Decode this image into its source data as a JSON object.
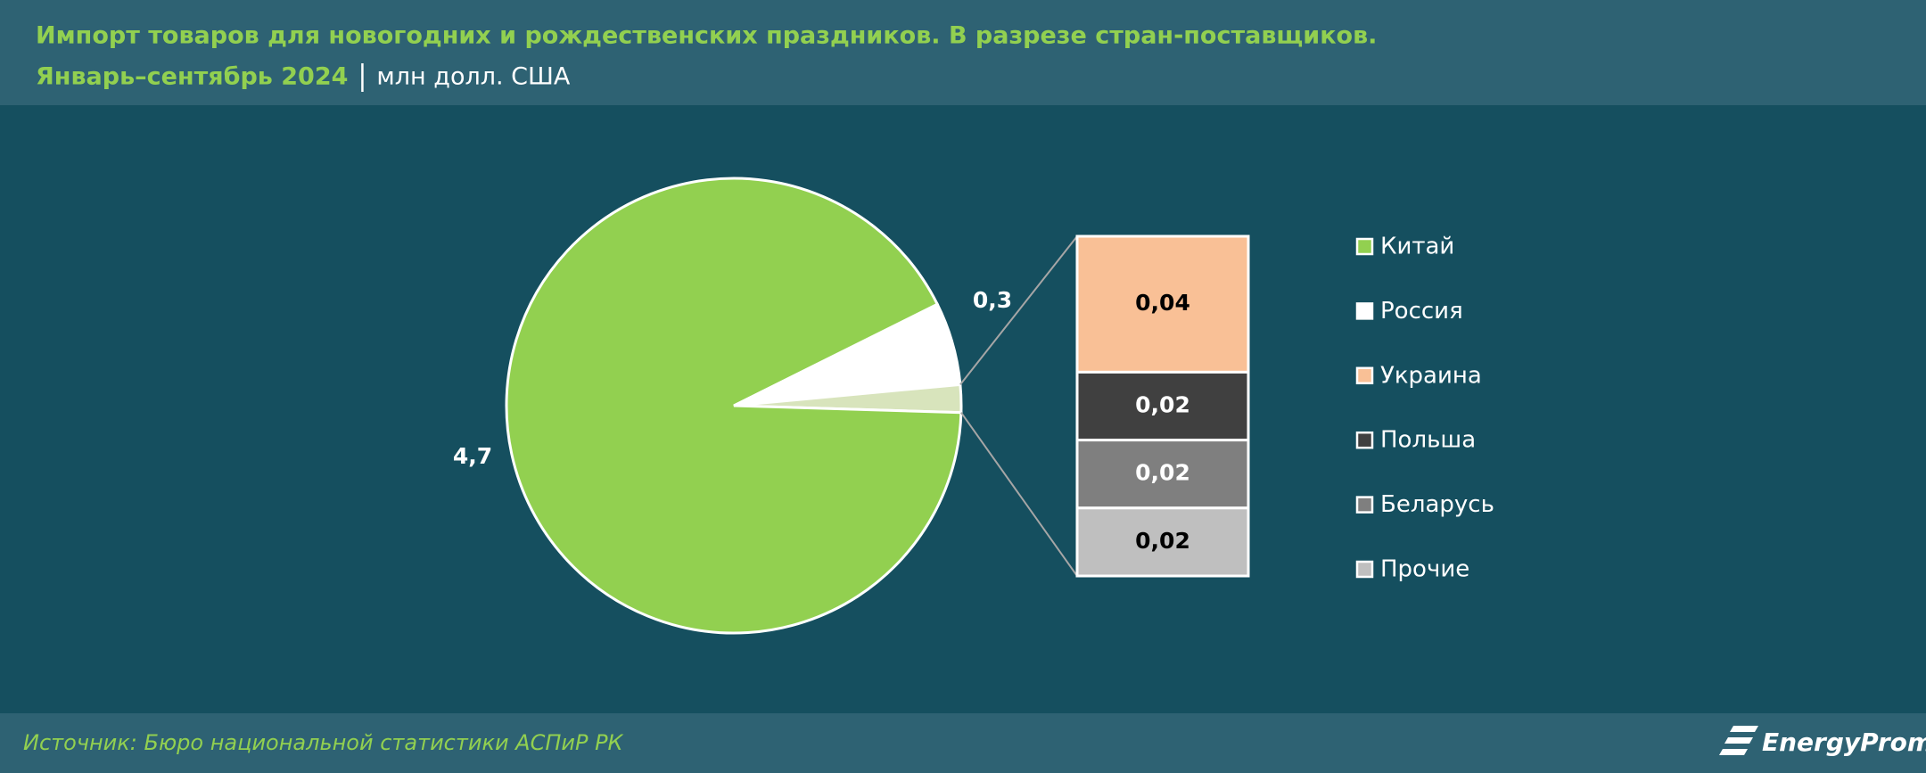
{
  "chart_data": {
    "type": "pie",
    "title": "Импорт товаров для новогодних и рождественских праздников. В разрезе стран-поставщиков.",
    "subtitle": "Январь–сентябрь 2024",
    "unit": "млн долл. США",
    "categories": [
      "Китай",
      "Россия",
      "Украина",
      "Польша",
      "Беларусь",
      "Прочие"
    ],
    "values": [
      4.7,
      0.3,
      0.04,
      0.02,
      0.02,
      0.02
    ],
    "value_labels": [
      "4,7",
      "0,3",
      "0,04",
      "0,02",
      "0,02",
      "0,02"
    ],
    "colors": [
      "#92d050",
      "#ffffff",
      "#f9c096",
      "#404040",
      "#7f7f7f",
      "#bfbfbf"
    ],
    "bar_of_pie_start": 2,
    "legend": "right",
    "source": "Источник: Бюро национальной статистики АСПиР РК",
    "logo": "EnergyProm"
  }
}
